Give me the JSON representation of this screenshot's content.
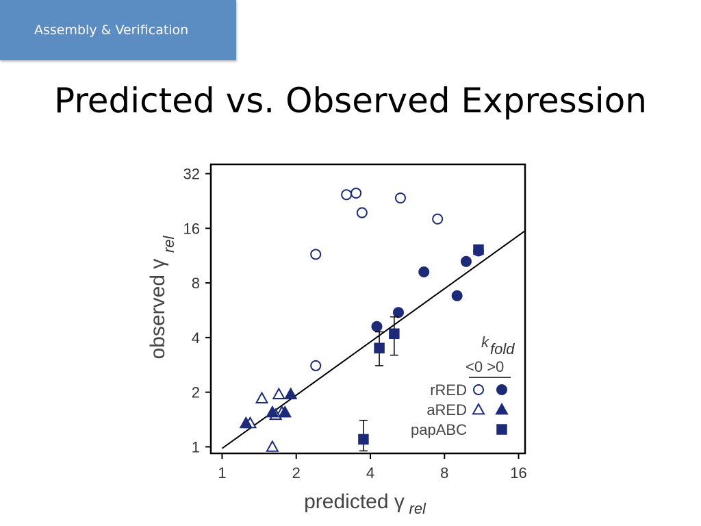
{
  "header_tag": "Assembly & Verification",
  "slide_title": "Predicted vs. Observed Expression",
  "chart_data": {
    "type": "scatter",
    "xlabel": "predicted γ",
    "xlabel_sub": "rel",
    "ylabel": "observed γ",
    "ylabel_sub": "rel",
    "xscale": "log2",
    "yscale": "log2",
    "xlim": [
      0.9,
      17
    ],
    "ylim": [
      0.92,
      36
    ],
    "xticks": [
      1,
      2,
      4,
      8,
      16
    ],
    "xtick_labels": [
      "1",
      "2",
      "4",
      "8",
      "16"
    ],
    "yticks": [
      1,
      2,
      4,
      8,
      16,
      32
    ],
    "ytick_labels": [
      "1",
      "2",
      "4",
      "8",
      "16",
      "32"
    ],
    "reference_line": "y = x",
    "legend": {
      "title_main": "k",
      "title_sub": "fold",
      "columns": "<0 >0",
      "entries": [
        {
          "label": "rRED",
          "open": "circle",
          "filled": "circle"
        },
        {
          "label": "aRED",
          "open": "triangle",
          "filled": "triangle"
        },
        {
          "label": "papABC",
          "open": null,
          "filled": "square"
        }
      ],
      "position": "bottom-right"
    },
    "color": "#1c2a78",
    "series": [
      {
        "name": "rRED <0",
        "marker": "open-circle",
        "x": [
          3.2,
          3.5,
          3.7,
          5.3,
          7.5,
          2.4,
          2.4
        ],
        "y": [
          24.5,
          25.0,
          19.5,
          23.5,
          18.0,
          11.5,
          2.8
        ]
      },
      {
        "name": "rRED >0",
        "marker": "filled-circle",
        "x": [
          4.25,
          5.2,
          6.6,
          9.8,
          9.0,
          11.0
        ],
        "y": [
          4.6,
          5.5,
          9.2,
          10.5,
          6.8,
          12.0
        ]
      },
      {
        "name": "aRED <0",
        "marker": "open-triangle",
        "x": [
          1.3,
          1.45,
          1.7,
          1.75,
          1.65,
          1.6
        ],
        "y": [
          1.35,
          1.85,
          1.95,
          1.55,
          1.5,
          1.0
        ]
      },
      {
        "name": "aRED >0",
        "marker": "filled-triangle",
        "x": [
          1.25,
          1.6,
          1.8,
          1.9
        ],
        "y": [
          1.35,
          1.55,
          1.55,
          1.95
        ]
      },
      {
        "name": "papABC >0",
        "marker": "filled-square",
        "x": [
          3.75,
          4.35,
          5.0,
          11.0
        ],
        "y": [
          1.1,
          3.5,
          4.2,
          12.2
        ],
        "yerr_low": [
          0.95,
          2.8,
          3.2,
          11.5
        ],
        "yerr_high": [
          1.4,
          4.3,
          5.2,
          12.5
        ]
      }
    ]
  }
}
